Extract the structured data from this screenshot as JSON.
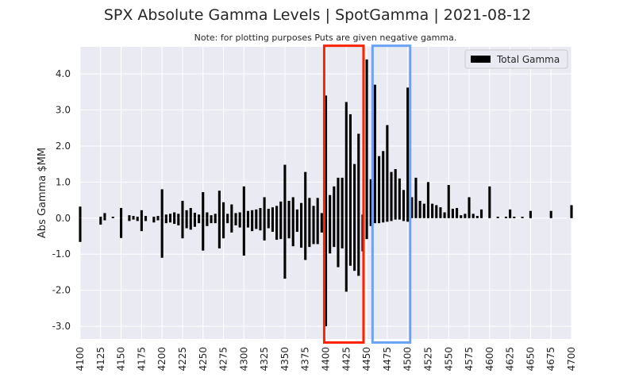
{
  "chart_data": {
    "type": "bar",
    "title": "SPX Absolute Gamma Levels | SpotGamma | 2021-08-12",
    "subtitle": "Note: for plotting purposes Puts are given negative gamma.",
    "xlabel": "",
    "ylabel": "Abs Gamma $MM",
    "xlim": [
      4100,
      4700
    ],
    "ylim": [
      -3.35,
      4.75
    ],
    "x_ticks": [
      "4100",
      "4125",
      "4150",
      "4175",
      "4200",
      "4225",
      "4250",
      "4275",
      "4300",
      "4325",
      "4350",
      "4375",
      "4400",
      "4425",
      "4450",
      "4475",
      "4500",
      "4525",
      "4550",
      "4575",
      "4600",
      "4625",
      "4650",
      "4675",
      "4700"
    ],
    "y_ticks": [
      "4.0",
      "3.0",
      "2.0",
      "1.0",
      "0.0",
      "-1.0",
      "-2.0",
      "-3.0"
    ],
    "grid": true,
    "legend": {
      "position": "top-right",
      "entries": [
        "Total Gamma"
      ]
    },
    "series": [
      {
        "name": "Total Gamma",
        "color": "#000000",
        "x": [
          4100,
          4120,
          4125,
          4130,
          4140,
          4150,
          4160,
          4165,
          4170,
          4175,
          4180,
          4190,
          4195,
          4200,
          4205,
          4210,
          4215,
          4220,
          4225,
          4230,
          4235,
          4240,
          4245,
          4250,
          4255,
          4260,
          4265,
          4270,
          4275,
          4280,
          4285,
          4290,
          4295,
          4300,
          4305,
          4310,
          4315,
          4320,
          4325,
          4330,
          4335,
          4340,
          4345,
          4350,
          4355,
          4360,
          4365,
          4370,
          4375,
          4380,
          4385,
          4390,
          4395,
          4400,
          4405,
          4410,
          4415,
          4420,
          4425,
          4430,
          4435,
          4440,
          4445,
          4450,
          4455,
          4460,
          4465,
          4470,
          4475,
          4480,
          4485,
          4490,
          4495,
          4500,
          4505,
          4510,
          4515,
          4520,
          4525,
          4530,
          4535,
          4540,
          4545,
          4550,
          4555,
          4560,
          4565,
          4570,
          4575,
          4580,
          4585,
          4590,
          4600,
          4610,
          4620,
          4625,
          4630,
          4640,
          4650,
          4675,
          4700
        ],
        "pos": [
          0.32,
          0,
          0.04,
          0.14,
          0.04,
          0.28,
          0.08,
          0.06,
          0.04,
          0.22,
          0.06,
          0.04,
          0.06,
          0.8,
          0.1,
          0.12,
          0.16,
          0.12,
          0.48,
          0.22,
          0.28,
          0.15,
          0.1,
          0.72,
          0.16,
          0.08,
          0.12,
          0.76,
          0.44,
          0.12,
          0.38,
          0.14,
          0.16,
          0.88,
          0.2,
          0.22,
          0.24,
          0.28,
          0.58,
          0.26,
          0.3,
          0.34,
          0.46,
          1.48,
          0.48,
          0.58,
          0.24,
          0.42,
          1.28,
          0.56,
          0.34,
          0.56,
          0.14,
          3.4,
          0.64,
          0.88,
          1.12,
          1.12,
          3.22,
          2.88,
          1.5,
          2.34,
          0.1,
          4.4,
          1.08,
          3.7,
          1.72,
          1.86,
          2.58,
          1.28,
          1.36,
          1.1,
          0.78,
          3.62,
          0.58,
          1.12,
          0.48,
          0.4,
          1.0,
          0.4,
          0.36,
          0.3,
          0.16,
          0.92,
          0.26,
          0.28,
          0.08,
          0.12,
          0.58,
          0.12,
          0.06,
          0.24,
          0.88,
          0.04,
          0.04,
          0.24,
          0.04,
          0.04,
          0.2,
          0.2,
          0.36
        ],
        "neg": [
          -0.66,
          0,
          -0.18,
          -0.06,
          0,
          -0.55,
          -0.08,
          -0.04,
          -0.08,
          -0.36,
          -0.08,
          -0.12,
          -0.06,
          -1.1,
          -0.14,
          -0.12,
          -0.16,
          -0.2,
          -0.56,
          -0.28,
          -0.32,
          -0.24,
          -0.14,
          -0.9,
          -0.22,
          -0.14,
          -0.14,
          -0.84,
          -0.56,
          -0.14,
          -0.4,
          -0.2,
          -0.26,
          -1.04,
          -0.26,
          -0.36,
          -0.3,
          -0.34,
          -0.62,
          -0.28,
          -0.38,
          -0.6,
          -0.58,
          -1.68,
          -0.56,
          -0.78,
          -0.38,
          -0.82,
          -1.16,
          -0.8,
          -0.72,
          -0.72,
          -0.4,
          -3.0,
          -0.98,
          -0.8,
          -1.36,
          -0.84,
          -2.04,
          -1.32,
          -1.46,
          -1.6,
          -0.92,
          -0.58,
          -0.22,
          -0.14,
          -0.14,
          -0.12,
          -0.1,
          -0.08,
          -0.04,
          -0.04,
          -0.08,
          -0.1,
          0,
          0,
          0,
          0,
          0,
          0,
          0,
          0,
          0,
          0,
          0,
          0,
          0,
          0,
          0,
          0,
          0,
          0,
          0,
          0,
          0,
          0,
          0,
          0,
          0,
          0,
          0
        ]
      }
    ],
    "highlight_boxes": [
      {
        "color": "#ff2200",
        "x_range": [
          4398,
          4446
        ],
        "y_range": [
          -3.45,
          4.78
        ]
      },
      {
        "color": "#6aa3f5",
        "x_range": [
          4457,
          4503
        ],
        "y_range": [
          -3.45,
          4.78
        ]
      }
    ]
  }
}
